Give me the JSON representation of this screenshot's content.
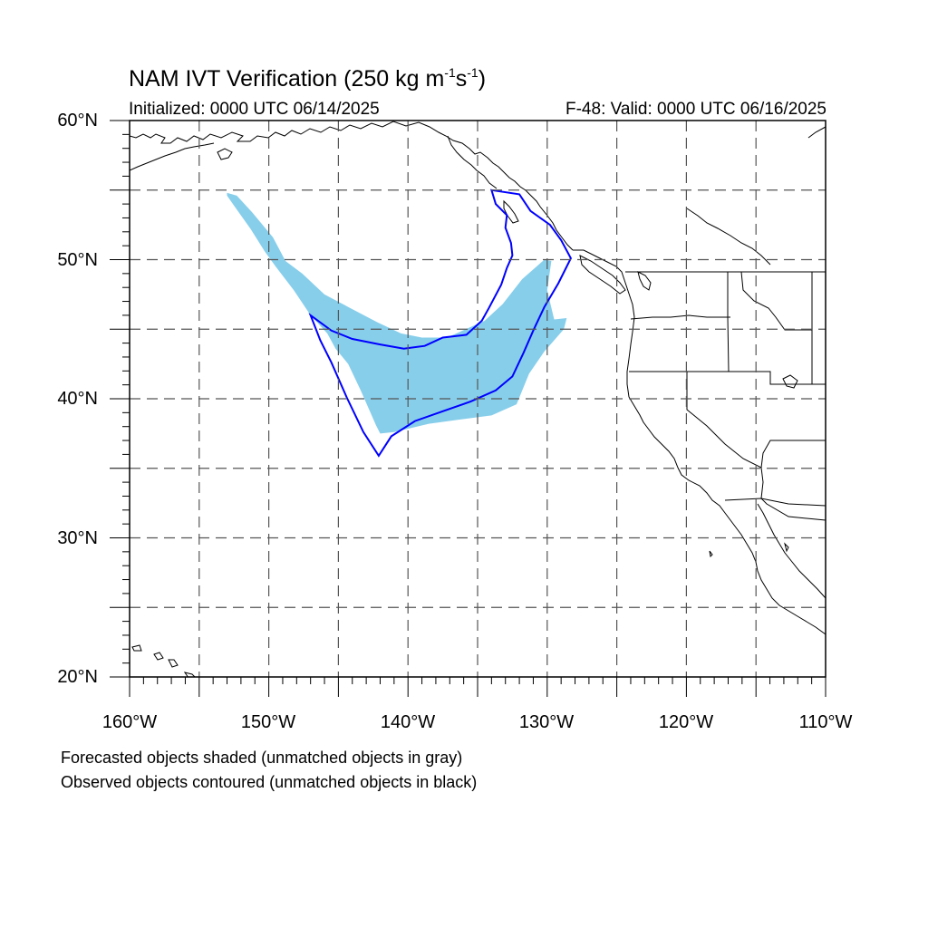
{
  "title": {
    "main": "NAM IVT Verification (250 kg m",
    "exp1": "-1",
    "mid": "s",
    "exp2": "-1",
    "close": ")"
  },
  "initialized": "Initialized: 0000 UTC 06/14/2025",
  "valid": "F-48: Valid: 0000 UTC 06/16/2025",
  "map": {
    "projection": "cylindrical equidistant",
    "lon_range": [
      -160,
      -110
    ],
    "lat_range": [
      20,
      60
    ],
    "grid_lines": "dashed, every 5 degrees",
    "lat_labels": [
      "60°N",
      "50°N",
      "40°N",
      "30°N",
      "20°N"
    ],
    "lon_labels": [
      "160°W",
      "150°W",
      "140°W",
      "130°W",
      "120°W",
      "110°W"
    ],
    "colors": {
      "forecast_fill": "#87ceeb",
      "observed_contour": "#0000ff",
      "coastline": "#000000",
      "grid": "#555555"
    },
    "forecast_object": {
      "style": "shaded (matched)",
      "outline_lonlat": [
        [
          -153.0,
          54.8
        ],
        [
          -152.3,
          54.6
        ],
        [
          -151.2,
          53.4
        ],
        [
          -149.7,
          51.6
        ],
        [
          -148.8,
          49.9
        ],
        [
          -147.6,
          49.0
        ],
        [
          -146.0,
          47.5
        ],
        [
          -144.3,
          46.6
        ],
        [
          -142.2,
          45.5
        ],
        [
          -140.5,
          44.7
        ],
        [
          -139.0,
          44.4
        ],
        [
          -137.2,
          44.4
        ],
        [
          -134.5,
          45.6
        ],
        [
          -133.2,
          46.8
        ],
        [
          -131.8,
          48.6
        ],
        [
          -130.2,
          50.0
        ],
        [
          -129.7,
          49.9
        ],
        [
          -130.0,
          47.8
        ],
        [
          -129.5,
          45.7
        ],
        [
          -128.6,
          45.8
        ],
        [
          -128.8,
          45.0
        ],
        [
          -130.2,
          43.4
        ],
        [
          -131.3,
          41.8
        ],
        [
          -132.2,
          39.6
        ],
        [
          -134.0,
          38.8
        ],
        [
          -136.3,
          38.5
        ],
        [
          -138.5,
          38.2
        ],
        [
          -141.0,
          37.6
        ],
        [
          -142.0,
          37.5
        ],
        [
          -142.3,
          38.1
        ],
        [
          -143.4,
          40.6
        ],
        [
          -144.3,
          42.5
        ],
        [
          -145.2,
          43.6
        ],
        [
          -145.8,
          44.7
        ],
        [
          -147.0,
          46.0
        ],
        [
          -148.2,
          47.8
        ],
        [
          -149.5,
          49.5
        ],
        [
          -150.3,
          50.6
        ],
        [
          -151.3,
          52.2
        ],
        [
          -152.3,
          53.6
        ],
        [
          -153.0,
          54.6
        ]
      ]
    },
    "observed_object": {
      "style": "contoured (matched)",
      "outline_lonlat": [
        [
          -147.0,
          46.0
        ],
        [
          -145.5,
          44.9
        ],
        [
          -144.0,
          44.3
        ],
        [
          -142.0,
          43.9
        ],
        [
          -140.3,
          43.6
        ],
        [
          -138.8,
          43.8
        ],
        [
          -137.5,
          44.4
        ],
        [
          -135.8,
          44.6
        ],
        [
          -134.7,
          45.6
        ],
        [
          -134.2,
          46.5
        ],
        [
          -133.3,
          48.2
        ],
        [
          -132.9,
          49.4
        ],
        [
          -132.5,
          50.3
        ],
        [
          -132.6,
          51.2
        ],
        [
          -133.0,
          52.3
        ],
        [
          -132.9,
          53.2
        ],
        [
          -133.7,
          54.0
        ],
        [
          -134.0,
          55.0
        ],
        [
          -132.0,
          54.7
        ],
        [
          -131.2,
          53.5
        ],
        [
          -129.8,
          52.5
        ],
        [
          -129.0,
          51.4
        ],
        [
          -128.3,
          50.1
        ],
        [
          -129.2,
          48.3
        ],
        [
          -130.2,
          46.6
        ],
        [
          -131.0,
          44.9
        ],
        [
          -131.7,
          43.3
        ],
        [
          -132.5,
          41.6
        ],
        [
          -133.7,
          40.6
        ],
        [
          -135.5,
          39.8
        ],
        [
          -137.5,
          39.1
        ],
        [
          -139.5,
          38.4
        ],
        [
          -141.2,
          37.3
        ],
        [
          -142.1,
          35.9
        ],
        [
          -143.2,
          37.6
        ],
        [
          -144.4,
          40.1
        ],
        [
          -145.5,
          42.6
        ],
        [
          -146.3,
          44.2
        ],
        [
          -147.0,
          46.0
        ]
      ]
    }
  },
  "notes": [
    "Forecasted objects shaded (unmatched objects in gray)",
    "Observed objects contoured (unmatched objects in black)"
  ]
}
